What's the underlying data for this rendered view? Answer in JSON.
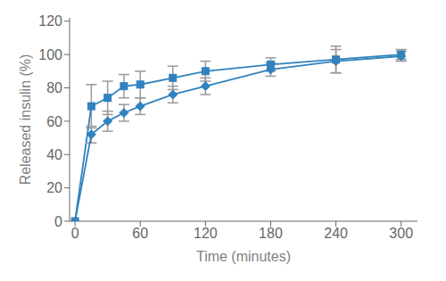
{
  "chart_data": {
    "type": "line",
    "xlabel": "Time (minutes)",
    "ylabel": "Released insulin (%)",
    "x": [
      0,
      15,
      30,
      45,
      60,
      90,
      120,
      180,
      240,
      300
    ],
    "series": [
      {
        "marker": "square",
        "values": [
          0,
          69,
          74,
          81,
          82,
          86,
          90,
          94,
          97,
          100
        ],
        "yerr": [
          0,
          13,
          10,
          7,
          8,
          7,
          6,
          4,
          8,
          3
        ]
      },
      {
        "marker": "diamond",
        "values": [
          0,
          52,
          60,
          65,
          69,
          76,
          81,
          91,
          96,
          99
        ],
        "yerr": [
          0,
          5,
          6,
          5,
          5,
          5,
          5,
          4,
          7,
          3
        ]
      }
    ],
    "xlim": [
      -5,
      315
    ],
    "ylim": [
      0,
      122
    ],
    "xticks": [
      0,
      60,
      120,
      180,
      240,
      300
    ],
    "yticks": [
      0,
      20,
      40,
      60,
      80,
      100,
      120
    ],
    "grid": false
  }
}
